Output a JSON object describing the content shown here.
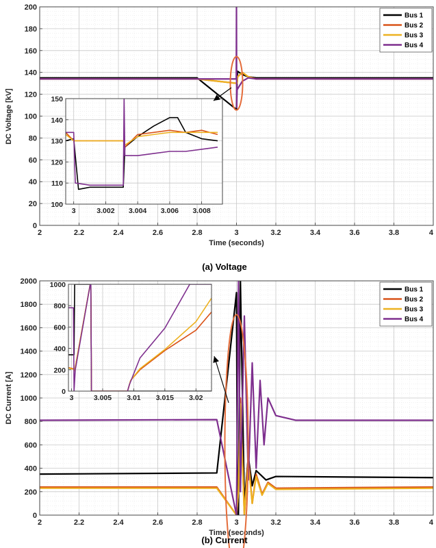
{
  "chart_data": [
    {
      "type": "line",
      "caption": "(a) Voltage",
      "xlabel": "Time (seconds)",
      "ylabel": "DC Voltage [kV]",
      "xlim": [
        2,
        4
      ],
      "ylim": [
        0,
        200
      ],
      "xticks": [
        "2",
        "2.2",
        "2.4",
        "2.6",
        "2.8",
        "3",
        "3.2",
        "3.4",
        "3.6",
        "3.8",
        "4"
      ],
      "yticks": [
        "0",
        "20",
        "40",
        "60",
        "80",
        "100",
        "120",
        "140",
        "160",
        "180",
        "200"
      ],
      "grid": true,
      "legend_position": "top-right",
      "series": [
        {
          "name": "Bus 1",
          "color": "#000000",
          "x": [
            2.0,
            2.8,
            3.0,
            3.003,
            3.006,
            3.03,
            3.06,
            3.1,
            4.0
          ],
          "y": [
            135,
            135,
            106,
            133,
            141,
            138,
            136,
            135,
            135
          ]
        },
        {
          "name": "Bus 2",
          "color": "#d95319",
          "x": [
            2.0,
            2.8,
            3.0,
            3.003,
            3.006,
            3.03,
            3.06,
            3.1,
            4.0
          ],
          "y": [
            134,
            134,
            130,
            130,
            136,
            140,
            136,
            134,
            134
          ]
        },
        {
          "name": "Bus 3",
          "color": "#edb120",
          "x": [
            2.0,
            2.8,
            3.0,
            3.003,
            3.006,
            3.03,
            3.06,
            3.1,
            4.0
          ],
          "y": [
            134,
            134,
            130,
            130,
            136,
            140,
            136,
            134,
            134
          ]
        },
        {
          "name": "Bus 4",
          "color": "#7e2f8e",
          "x": [
            2.0,
            2.8,
            2.999,
            3.0,
            3.001,
            3.003,
            3.006,
            3.03,
            3.06,
            3.1,
            4.0
          ],
          "y": [
            134,
            134,
            134,
            200,
            108,
            124,
            125,
            132,
            135,
            134,
            134
          ]
        }
      ],
      "inset": {
        "xlim": [
          2.9995,
          3.0093
        ],
        "ylim": [
          100,
          150
        ],
        "xticks": [
          "3",
          "3.002",
          "3.004",
          "3.006",
          "3.008"
        ],
        "yticks": [
          "100",
          "110",
          "120",
          "130",
          "140",
          "150"
        ],
        "series": [
          {
            "name": "Bus 1",
            "color": "#000000",
            "x": [
              2.9995,
              3.0,
              3.0003,
              3.001,
              3.002,
              3.0031,
              3.0032,
              3.004,
              3.005,
              3.006,
              3.0065,
              3.007,
              3.008,
              3.009
            ],
            "y": [
              130,
              131,
              107,
              108,
              108,
              108,
              127,
              132,
              137,
              141,
              141,
              134,
              131,
              130
            ]
          },
          {
            "name": "Bus 2",
            "color": "#d95319",
            "x": [
              2.9995,
              3.0,
              3.001,
              3.002,
              3.003,
              3.0031,
              3.0032,
              3.004,
              3.005,
              3.006,
              3.007,
              3.008,
              3.009
            ],
            "y": [
              134,
              130,
              130,
              130,
              130,
              130,
              127,
              133,
              134,
              135,
              134,
              135,
              133
            ]
          },
          {
            "name": "Bus 3",
            "color": "#edb120",
            "x": [
              2.9995,
              3.0,
              3.001,
              3.002,
              3.003,
              3.0031,
              3.0032,
              3.004,
              3.005,
              3.006,
              3.007,
              3.008,
              3.009
            ],
            "y": [
              133,
              130,
              130,
              130,
              130,
              130,
              128,
              132,
              133,
              134,
              134,
              134,
              134
            ]
          },
          {
            "name": "Bus 4",
            "color": "#7e2f8e",
            "x": [
              2.9995,
              3.0,
              3.0001,
              3.001,
              3.002,
              3.003,
              3.0031,
              3.00315,
              3.0032,
              3.004,
              3.005,
              3.006,
              3.007,
              3.008,
              3.009
            ],
            "y": [
              134,
              134,
              110,
              109,
              109,
              109,
              109,
              150,
              123,
              123,
              124,
              125,
              125,
              126,
              127
            ]
          }
        ]
      }
    },
    {
      "type": "line",
      "caption": "(b) Current",
      "xlabel": "Time (seconds)",
      "ylabel": "DC Current [A]",
      "xlim": [
        2,
        4
      ],
      "ylim": [
        0,
        2000
      ],
      "xticks": [
        "2",
        "2.2",
        "2.4",
        "2.6",
        "2.8",
        "3",
        "3.2",
        "3.4",
        "3.6",
        "3.8",
        "4"
      ],
      "yticks": [
        "0",
        "200",
        "400",
        "600",
        "800",
        "1000",
        "1200",
        "1400",
        "1600",
        "1800",
        "2000"
      ],
      "grid": true,
      "legend_position": "top-right",
      "series": [
        {
          "name": "Bus 1",
          "color": "#000000",
          "x": [
            2.0,
            2.9,
            3.0,
            3.005,
            3.01,
            3.02,
            3.04,
            3.06,
            3.08,
            3.1,
            3.15,
            3.2,
            4.0
          ],
          "y": [
            350,
            360,
            1900,
            0,
            0,
            2000,
            100,
            500,
            250,
            380,
            300,
            330,
            320
          ]
        },
        {
          "name": "Bus 2",
          "color": "#d95319",
          "x": [
            2.0,
            2.9,
            3.0,
            3.01,
            3.02,
            3.04,
            3.06,
            3.08,
            3.1,
            3.13,
            3.16,
            3.2,
            4.0
          ],
          "y": [
            240,
            240,
            0,
            200,
            1000,
            0,
            500,
            100,
            350,
            180,
            280,
            230,
            240
          ]
        },
        {
          "name": "Bus 3",
          "color": "#edb120",
          "x": [
            2.0,
            2.9,
            3.0,
            3.01,
            3.02,
            3.04,
            3.06,
            3.08,
            3.1,
            3.13,
            3.16,
            3.2,
            4.0
          ],
          "y": [
            230,
            230,
            0,
            200,
            950,
            0,
            450,
            100,
            330,
            170,
            270,
            220,
            230
          ]
        },
        {
          "name": "Bus 4",
          "color": "#7e2f8e",
          "x": [
            2.0,
            2.9,
            3.0,
            3.01,
            3.02,
            3.04,
            3.06,
            3.08,
            3.1,
            3.12,
            3.14,
            3.16,
            3.2,
            3.3,
            4.0
          ],
          "y": [
            810,
            815,
            0,
            2000,
            200,
            1700,
            300,
            1300,
            400,
            1150,
            600,
            1000,
            850,
            810,
            810
          ]
        }
      ],
      "inset": {
        "xlim": [
          2.9995,
          3.0225
        ],
        "ylim": [
          0,
          1000
        ],
        "xticks": [
          "3",
          "3.005",
          "3.01",
          "3.015",
          "3.02"
        ],
        "yticks": [
          "0",
          "200",
          "400",
          "600",
          "800",
          "1000"
        ],
        "series": [
          {
            "name": "Bus 1",
            "color": "#000000",
            "x": [
              2.9995,
              3.0004,
              3.0005,
              3.003,
              3.0031,
              3.0032,
              3.0225
            ],
            "y": [
              340,
              340,
              1000,
              1000,
              1000,
              0,
              0
            ]
          },
          {
            "name": "Bus 2",
            "color": "#d95319",
            "x": [
              2.9995,
              3.0003,
              3.0005,
              3.003,
              3.0031,
              3.0032,
              3.009,
              3.0095,
              3.011,
              3.015,
              3.02,
              3.0225
            ],
            "y": [
              220,
              210,
              195,
              1000,
              1000,
              0,
              0,
              100,
              200,
              380,
              570,
              740
            ]
          },
          {
            "name": "Bus 3",
            "color": "#edb120",
            "x": [
              2.9995,
              3.0003,
              3.0005,
              3.003,
              3.0031,
              3.0032,
              3.009,
              3.0095,
              3.011,
              3.015,
              3.02,
              3.0225
            ],
            "y": [
              215,
              205,
              190,
              1000,
              1000,
              0,
              0,
              100,
              210,
              390,
              650,
              870
            ]
          },
          {
            "name": "Bus 4",
            "color": "#7e2f8e",
            "x": [
              2.9995,
              3.0003,
              3.0004,
              3.0006,
              3.003,
              3.0031,
              3.0032,
              3.009,
              3.0093,
              3.011,
              3.015,
              3.019,
              3.0225
            ],
            "y": [
              780,
              780,
              0,
              200,
              1000,
              1000,
              0,
              0,
              60,
              310,
              590,
              1000,
              1000
            ]
          }
        ]
      }
    }
  ],
  "style": {
    "zoom_ellipse_color": "#e46c3a",
    "grid_major_color": "#c8c8c8",
    "grid_minor_color": "#e6e6e6",
    "arrow_color": "#000000"
  }
}
